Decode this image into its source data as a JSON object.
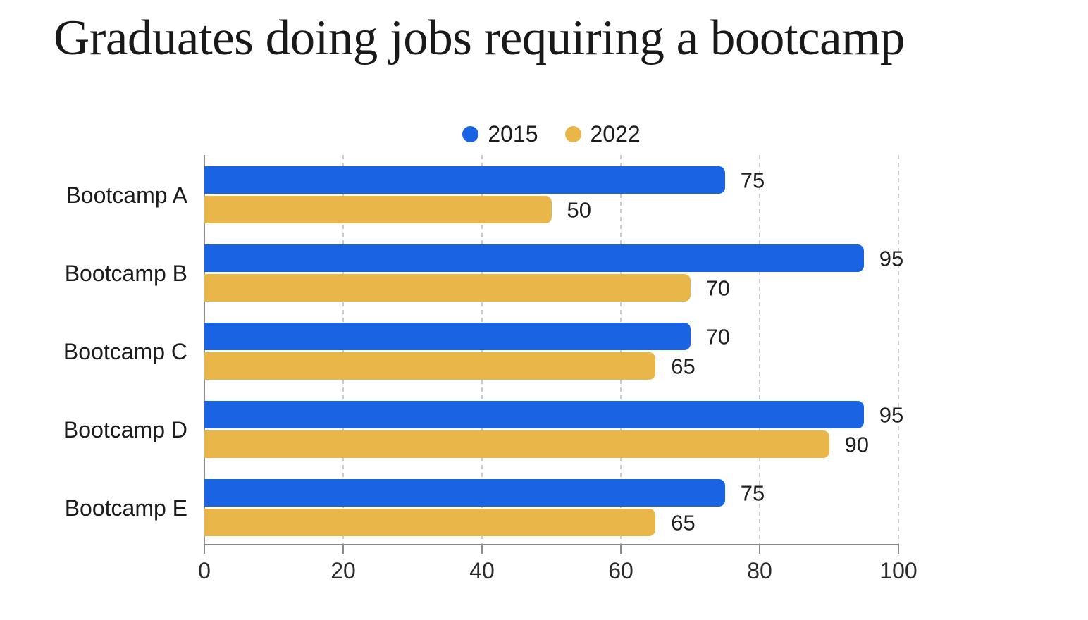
{
  "title": "Graduates doing jobs requiring a bootcamp",
  "colors": {
    "series_2015": "#1a64e4",
    "series_2022": "#e9b64a",
    "axis": "#8a8a8a",
    "gridline": "#cccccc",
    "text": "#1c1c1c"
  },
  "legend": {
    "position": "top-center",
    "items": [
      {
        "label": "2015",
        "color": "#1a64e4"
      },
      {
        "label": "2022",
        "color": "#e9b64a"
      }
    ]
  },
  "chart_data": {
    "type": "bar",
    "orientation": "horizontal",
    "title": "Graduates doing jobs requiring a bootcamp",
    "categories": [
      "Bootcamp A",
      "Bootcamp B",
      "Bootcamp C",
      "Bootcamp D",
      "Bootcamp E"
    ],
    "series": [
      {
        "name": "2015",
        "color": "#1a64e4",
        "values": [
          75,
          95,
          70,
          95,
          75
        ]
      },
      {
        "name": "2022",
        "color": "#e9b64a",
        "values": [
          50,
          70,
          65,
          90,
          65
        ]
      }
    ],
    "xlabel": "",
    "ylabel": "",
    "xlim": [
      0,
      100
    ],
    "x_ticks": [
      0,
      20,
      40,
      60,
      80,
      100
    ],
    "grid": "vertical-dashed",
    "legend_position": "top-center",
    "value_labels": true
  }
}
